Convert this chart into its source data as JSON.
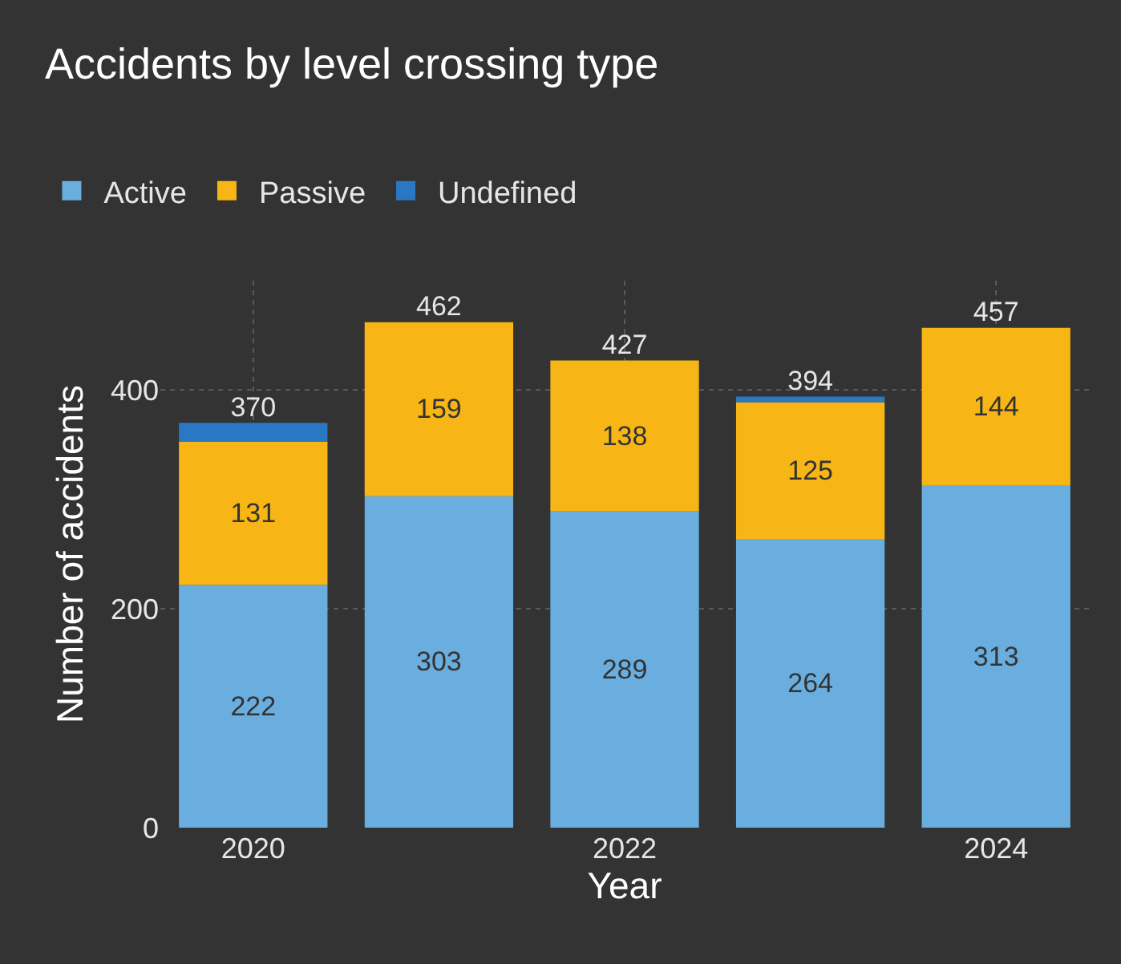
{
  "chart_data": {
    "type": "bar",
    "title": "Accidents by level crossing type",
    "xlabel": "Year",
    "ylabel": "Number of accidents",
    "categories": [
      "2020",
      null,
      "2022",
      null,
      "2024"
    ],
    "series": [
      {
        "name": "Active",
        "color": "#6aaee0",
        "values": [
          222,
          303,
          289,
          264,
          313
        ],
        "value_labels": [
          "222",
          "303",
          "289",
          "264",
          "313"
        ]
      },
      {
        "name": "Passive",
        "color": "#f7b516",
        "values": [
          131,
          159,
          138,
          125,
          144
        ],
        "value_labels": [
          "131",
          "159",
          "138",
          "125",
          "144"
        ]
      },
      {
        "name": "Undefined",
        "color": "#2a78c4",
        "values": [
          17,
          0,
          0,
          5,
          0
        ],
        "value_labels": [
          null,
          null,
          null,
          null,
          null
        ]
      }
    ],
    "stacked": true,
    "totals": [
      "370",
      "462",
      "427",
      "394",
      "457"
    ],
    "ylim": [
      0,
      500
    ],
    "yticks": [
      0,
      200,
      400
    ],
    "grid": true,
    "legend": "top left"
  }
}
